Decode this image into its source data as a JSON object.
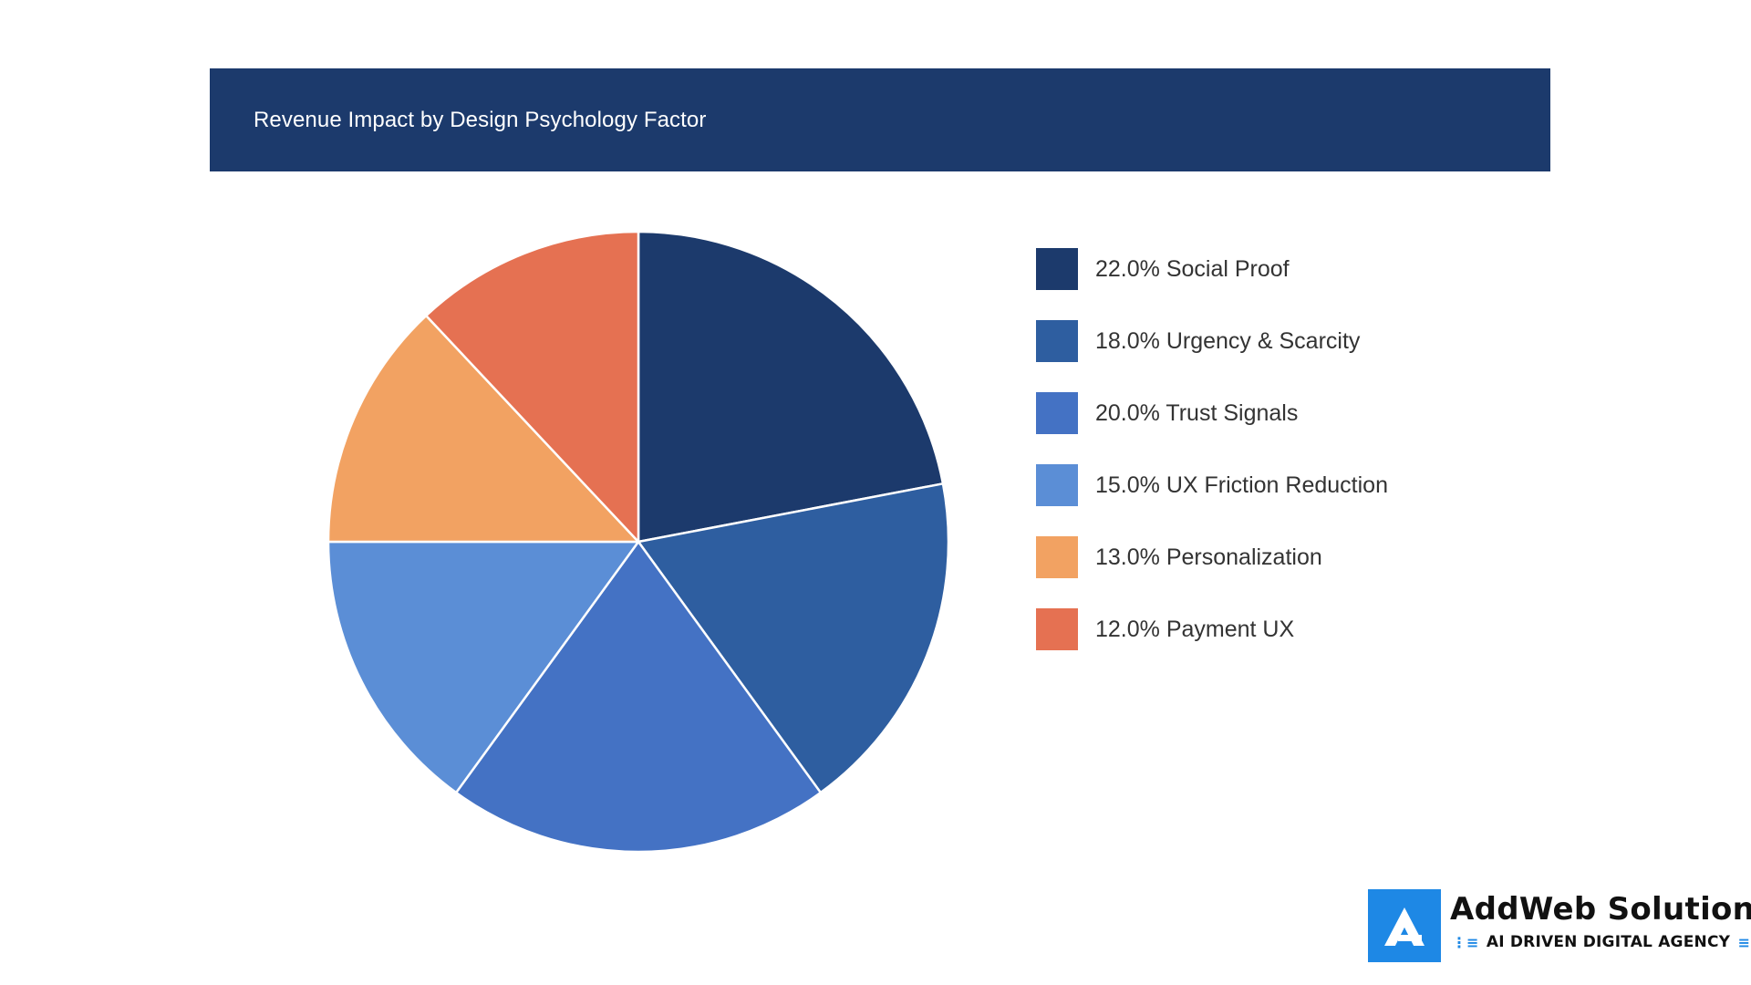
{
  "chart_data": {
    "type": "pie",
    "title": "Revenue Impact by Design Psychology Factor",
    "slices": [
      {
        "label": "Social Proof",
        "value": 22.0,
        "display": "22.0% Social Proof",
        "color": "#1c3a6c"
      },
      {
        "label": "Urgency & Scarcity",
        "value": 18.0,
        "display": "18.0% Urgency & Scarcity",
        "color": "#2e5ea0"
      },
      {
        "label": "Trust Signals",
        "value": 20.0,
        "display": "20.0% Trust Signals",
        "color": "#4472c4"
      },
      {
        "label": "UX Friction Reduction",
        "value": 15.0,
        "display": "15.0% UX Friction Reduction",
        "color": "#5b8ed6"
      },
      {
        "label": "Personalization",
        "value": 13.0,
        "display": "13.0% Personalization",
        "color": "#f2a262"
      },
      {
        "label": "Payment UX",
        "value": 12.0,
        "display": "12.0% Payment UX",
        "color": "#e57152"
      }
    ],
    "legend_position": "right"
  },
  "logo": {
    "name": "AddWeb Solution",
    "tagline": "AI DRIVEN DIGITAL AGENCY",
    "color": "#1e88e5"
  }
}
